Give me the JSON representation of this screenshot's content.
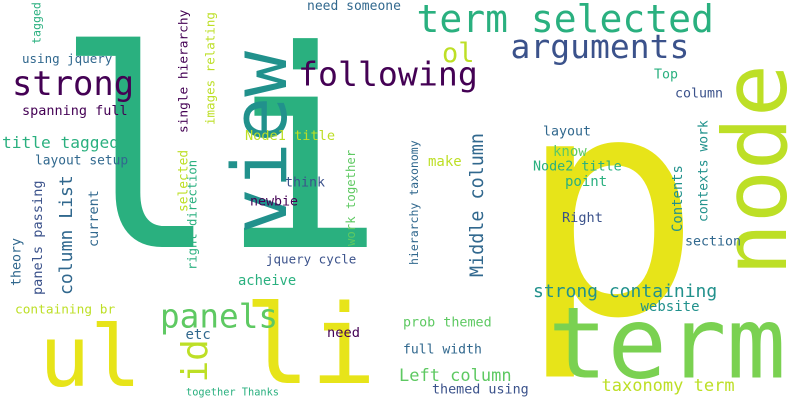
{
  "palette": {
    "dark_purple": "#440154",
    "indigo": "#3b528b",
    "steel_blue": "#31688e",
    "teal": "#21918c",
    "green_teal": "#2ab07f",
    "green": "#5ec962",
    "lime": "#7ad151",
    "yellow_green": "#bddf26",
    "yellow": "#e7e419",
    "background": "#ffffff"
  },
  "words": [
    {
      "id": "w-li",
      "text": "li",
      "color": "#2ab07f"
    },
    {
      "id": "w-p",
      "text": "p",
      "color": "#e7e419"
    },
    {
      "id": "w-term-big",
      "text": "term",
      "color": "#7ad151"
    },
    {
      "id": "w-node",
      "text": "node",
      "color": "#bddf26"
    },
    {
      "id": "w-view",
      "text": "view",
      "color": "#21918c"
    },
    {
      "id": "w-ul",
      "text": "ul",
      "color": "#e7e419"
    },
    {
      "id": "w-li-small",
      "text": "li",
      "color": "#e7e419"
    },
    {
      "id": "w-term-selected",
      "text": "term selected",
      "color": "#2ab07f"
    },
    {
      "id": "w-arguments",
      "text": "arguments",
      "color": "#3b528b"
    },
    {
      "id": "w-following",
      "text": "following",
      "color": "#440154"
    },
    {
      "id": "w-strong",
      "text": "strong",
      "color": "#440154"
    },
    {
      "id": "w-ol",
      "text": "ol",
      "color": "#bddf26"
    },
    {
      "id": "w-panels",
      "text": "panels",
      "color": "#5ec962"
    },
    {
      "id": "w-id",
      "text": "id",
      "color": "#bddf26"
    },
    {
      "id": "w-title-tagged",
      "text": "title tagged",
      "color": "#2ab07f"
    },
    {
      "id": "w-spanning-full",
      "text": "spanning full",
      "color": "#440154"
    },
    {
      "id": "w-using-jquery",
      "text": "using jquery",
      "color": "#31688e"
    },
    {
      "id": "w-tagged",
      "text": "tagged",
      "color": "#2ab07f"
    },
    {
      "id": "w-layout-setup",
      "text": "layout setup",
      "color": "#31688e"
    },
    {
      "id": "w-column-list",
      "text": "column List",
      "color": "#31688e"
    },
    {
      "id": "w-panels-passing",
      "text": "panels passing",
      "color": "#3b528b"
    },
    {
      "id": "w-theory",
      "text": "theory",
      "color": "#31688e"
    },
    {
      "id": "w-current",
      "text": "current",
      "color": "#31688e"
    },
    {
      "id": "w-containing-br",
      "text": "containing br",
      "color": "#bddf26"
    },
    {
      "id": "w-together-thanks",
      "text": "together Thanks",
      "color": "#2ab07f"
    },
    {
      "id": "w-need-someone",
      "text": "need someone",
      "color": "#31688e"
    },
    {
      "id": "w-single-hierarchy",
      "text": "single hierarchy",
      "color": "#440154"
    },
    {
      "id": "w-images-relating",
      "text": "images relating",
      "color": "#bddf26"
    },
    {
      "id": "w-node1-title",
      "text": "Node1 title",
      "color": "#bddf26"
    },
    {
      "id": "w-selected",
      "text": "selected",
      "color": "#bddf26"
    },
    {
      "id": "w-right-direction",
      "text": "right direction",
      "color": "#2ab07f"
    },
    {
      "id": "w-think",
      "text": "think",
      "color": "#3b528b"
    },
    {
      "id": "w-newbie",
      "text": "newbie",
      "color": "#440154"
    },
    {
      "id": "w-work-together",
      "text": "work together",
      "color": "#5ec962"
    },
    {
      "id": "w-jquery-cycle",
      "text": "jquery cycle",
      "color": "#3b528b"
    },
    {
      "id": "w-acheive",
      "text": "acheive",
      "color": "#2ab07f"
    },
    {
      "id": "w-etc",
      "text": "etc",
      "color": "#31688e"
    },
    {
      "id": "w-need",
      "text": "need",
      "color": "#440154"
    },
    {
      "id": "w-hierarchy-taxonomy",
      "text": "hierarchy taxonomy",
      "color": "#31688e"
    },
    {
      "id": "w-make",
      "text": "make",
      "color": "#bddf26"
    },
    {
      "id": "w-middle-column",
      "text": "Middle column",
      "color": "#31688e"
    },
    {
      "id": "w-layout",
      "text": "layout",
      "color": "#31688e"
    },
    {
      "id": "w-know",
      "text": "know",
      "color": "#5ec962"
    },
    {
      "id": "w-node2-title",
      "text": "Node2 title",
      "color": "#2ab07f"
    },
    {
      "id": "w-point",
      "text": "point",
      "color": "#2ab07f"
    },
    {
      "id": "w-right",
      "text": "Right",
      "color": "#3b528b"
    },
    {
      "id": "w-top",
      "text": "Top",
      "color": "#2ab07f"
    },
    {
      "id": "w-column",
      "text": "column",
      "color": "#3b528b"
    },
    {
      "id": "w-contexts-work",
      "text": "contexts work",
      "color": "#21918c"
    },
    {
      "id": "w-contents",
      "text": "Contents",
      "color": "#21918c"
    },
    {
      "id": "w-section",
      "text": "section",
      "color": "#31688e"
    },
    {
      "id": "w-strong-containing",
      "text": "strong containing",
      "color": "#21918c"
    },
    {
      "id": "w-website",
      "text": "website",
      "color": "#21918c"
    },
    {
      "id": "w-prob-themed",
      "text": "prob themed",
      "color": "#5ec962"
    },
    {
      "id": "w-full-width",
      "text": "full width",
      "color": "#31688e"
    },
    {
      "id": "w-left-column",
      "text": "Left column",
      "color": "#5ec962"
    },
    {
      "id": "w-taxonomy-term",
      "text": "taxonomy term",
      "color": "#bddf26"
    },
    {
      "id": "w-themed-using",
      "text": "themed using",
      "color": "#3b528b"
    }
  ]
}
